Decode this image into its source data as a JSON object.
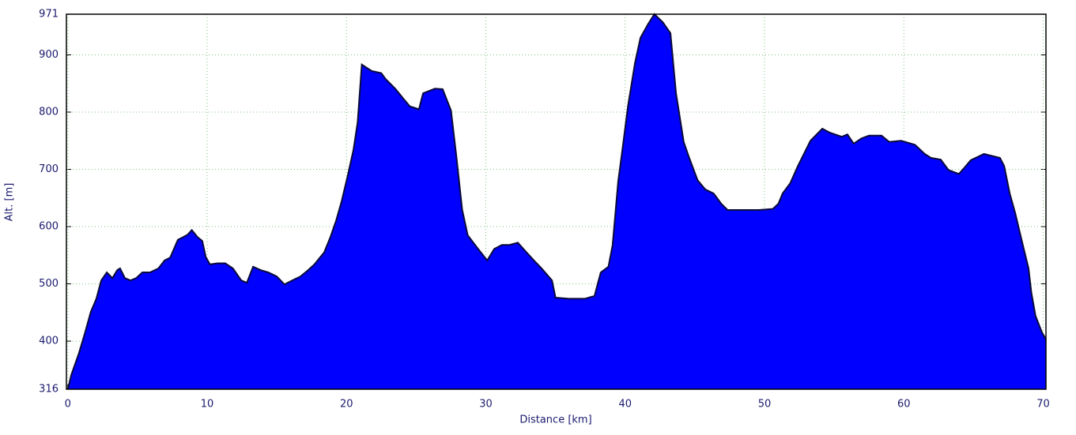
{
  "chart_data": {
    "type": "area",
    "xlabel": "Distance [km]",
    "ylabel": "Alt. [m]",
    "color": "#0000ff",
    "line_color": "#0a0a3a",
    "grid": true,
    "xlim": [
      -0.1,
      70.2
    ],
    "ylim": [
      316,
      971
    ],
    "xticks": [
      0,
      10,
      20,
      30,
      40,
      50,
      60,
      70
    ],
    "yticks": [
      316,
      400,
      500,
      600,
      700,
      800,
      900,
      971
    ],
    "x": [
      0,
      0.25,
      0.8,
      1.25,
      1.65,
      2.05,
      2.4,
      2.8,
      3.2,
      3.55,
      3.75,
      4.1,
      4.5,
      4.9,
      5.35,
      5.9,
      6.5,
      6.95,
      7.35,
      7.9,
      8.3,
      8.6,
      8.9,
      9.3,
      9.65,
      9.9,
      10.2,
      10.75,
      11.3,
      11.85,
      12.45,
      12.85,
      13.3,
      13.85,
      14.4,
      15,
      15.55,
      16.1,
      16.7,
      17.25,
      17.7,
      18.4,
      18.85,
      19.25,
      19.65,
      20.1,
      20.5,
      20.8,
      21.1,
      21.8,
      22.5,
      22.8,
      23.5,
      24.1,
      24.55,
      25.2,
      25.5,
      26.35,
      26.9,
      27.5,
      27.9,
      28.3,
      28.7,
      29.45,
      30.1,
      30.6,
      31.15,
      31.7,
      32.3,
      32.85,
      33.45,
      34,
      34.75,
      35,
      35.95,
      37.1,
      37.8,
      38.25,
      38.8,
      39.1,
      39.5,
      39.8,
      40.2,
      40.7,
      41.1,
      41.65,
      42.1,
      42.7,
      43.25,
      43.65,
      44.2,
      44.6,
      45.2,
      45.75,
      46.35,
      46.9,
      47.35,
      48.5,
      49.6,
      50.6,
      51,
      51.3,
      51.85,
      52.4,
      53.3,
      54.15,
      54.7,
      55.55,
      55.95,
      56.4,
      56.95,
      57.5,
      58.4,
      58.95,
      59.8,
      60.8,
      61.5,
      61.95,
      62.65,
      63.2,
      63.95,
      64.35,
      64.8,
      65.75,
      66.9,
      67.2,
      67.6,
      68,
      68.4,
      68.75,
      68.95,
      69.15,
      69.45,
      69.9,
      70.2
    ],
    "values": [
      316,
      341,
      379,
      416,
      451,
      474,
      506,
      520,
      510,
      524,
      527,
      510,
      506,
      510,
      520,
      520,
      527,
      541,
      546,
      577,
      582,
      586,
      594,
      582,
      575,
      547,
      534,
      536,
      536,
      527,
      506,
      502,
      530,
      524,
      520,
      513,
      499,
      506,
      513,
      524,
      534,
      555,
      582,
      610,
      644,
      690,
      734,
      782,
      883,
      872,
      868,
      858,
      841,
      823,
      810,
      805,
      833,
      841,
      840,
      803,
      720,
      630,
      585,
      561,
      541,
      561,
      568,
      568,
      572,
      557,
      541,
      527,
      506,
      476,
      474,
      474,
      479,
      520,
      530,
      568,
      679,
      734,
      810,
      885,
      930,
      954,
      971,
      957,
      938,
      833,
      748,
      720,
      681,
      665,
      658,
      640,
      629,
      629,
      629,
      631,
      640,
      658,
      676,
      706,
      750,
      771,
      764,
      757,
      761,
      745,
      754,
      759,
      759,
      748,
      750,
      743,
      727,
      720,
      717,
      699,
      692,
      703,
      716,
      727,
      720,
      706,
      658,
      623,
      582,
      547,
      527,
      485,
      444,
      416,
      403
    ]
  }
}
